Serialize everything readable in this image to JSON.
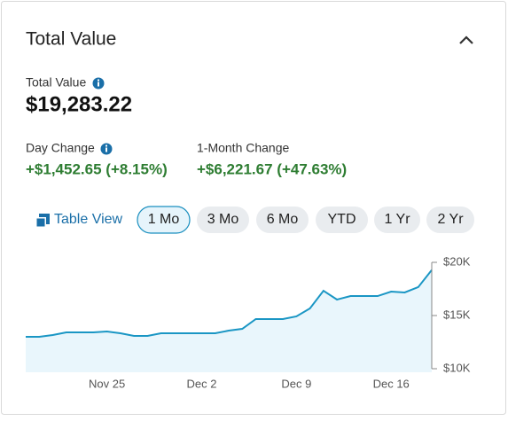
{
  "header": {
    "title": "Total Value"
  },
  "summary": {
    "label": "Total Value",
    "value": "$19,283.22"
  },
  "changes": [
    {
      "label": "Day Change",
      "value": "+$1,452.65 (+8.15%)"
    },
    {
      "label": "1-Month Change",
      "value": "+$6,221.67 (+47.63%)"
    }
  ],
  "controls": {
    "table_view": "Table View",
    "ranges": [
      "1 Mo",
      "3 Mo",
      "6 Mo",
      "YTD",
      "1 Yr",
      "2 Yr"
    ],
    "selected": 0
  },
  "chart_data": {
    "type": "area",
    "categories": [
      null,
      null,
      null,
      null,
      null,
      null,
      "Nov 25",
      null,
      null,
      null,
      null,
      null,
      null,
      "Dec 2",
      null,
      null,
      null,
      null,
      null,
      null,
      "Dec 9",
      null,
      null,
      null,
      null,
      null,
      null,
      "Dec 16",
      null,
      null,
      null
    ],
    "values": [
      13000,
      13000,
      13170,
      13420,
      13420,
      13420,
      13500,
      13330,
      13080,
      13080,
      13330,
      13330,
      13330,
      13330,
      13330,
      13580,
      13750,
      14670,
      14670,
      14670,
      14920,
      15670,
      17330,
      16500,
      16830,
      16830,
      16830,
      17250,
      17170,
      17670,
      19283
    ],
    "color": "#1a96c4",
    "fill_color": "#e9f6fc",
    "ylim": [
      10000,
      20000
    ],
    "yticks": [
      {
        "value": 10000,
        "label": "$10K"
      },
      {
        "value": 15000,
        "label": "$15K"
      },
      {
        "value": 20000,
        "label": "$20K"
      }
    ],
    "y_axis_side": "right"
  }
}
